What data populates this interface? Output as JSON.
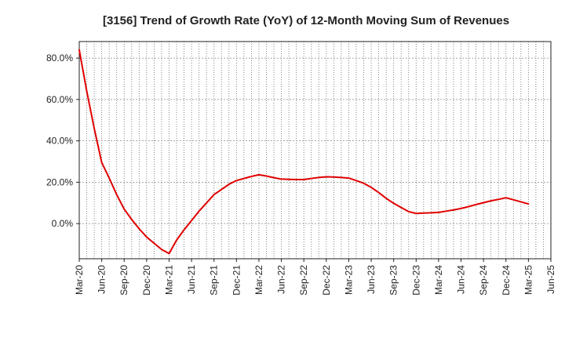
{
  "chart_data": {
    "type": "line",
    "title": "[3156]  Trend of Growth Rate (YoY) of 12-Month Moving Sum of Revenues",
    "xlabel": "",
    "ylabel": "",
    "x_tick_labels": [
      "Mar-20",
      "Jun-20",
      "Sep-20",
      "Dec-20",
      "Mar-21",
      "Jun-21",
      "Sep-21",
      "Dec-21",
      "Mar-22",
      "Jun-22",
      "Sep-22",
      "Dec-22",
      "Mar-23",
      "Jun-23",
      "Sep-23",
      "Dec-23",
      "Mar-24",
      "Jun-24",
      "Sep-24",
      "Dec-24",
      "Mar-25",
      "Jun-25"
    ],
    "y_tick_labels": [
      "80.0%",
      "60.0%",
      "40.0%",
      "20.0%",
      "0.0%"
    ],
    "y_ticks": [
      80,
      60,
      40,
      20,
      0
    ],
    "ylim": [
      -17,
      88
    ],
    "grid": true,
    "series": [
      {
        "color": "#e00000",
        "x": [
          "Mar-20",
          "Apr-20",
          "May-20",
          "Jun-20",
          "Jul-20",
          "Aug-20",
          "Sep-20",
          "Oct-20",
          "Nov-20",
          "Dec-20",
          "Jan-21",
          "Feb-21",
          "Mar-21",
          "Apr-21",
          "May-21",
          "Jun-21",
          "Jul-21",
          "Aug-21",
          "Sep-21",
          "Oct-21",
          "Nov-21",
          "Dec-21",
          "Jan-22",
          "Feb-22",
          "Mar-22",
          "Apr-22",
          "May-22",
          "Jun-22",
          "Jul-22",
          "Aug-22",
          "Sep-22",
          "Oct-22",
          "Nov-22",
          "Dec-22",
          "Jan-23",
          "Feb-23",
          "Mar-23",
          "Apr-23",
          "May-23",
          "Jun-23",
          "Jul-23",
          "Aug-23",
          "Sep-23",
          "Oct-23",
          "Nov-23",
          "Dec-23",
          "Jan-24",
          "Feb-24",
          "Mar-24",
          "Apr-24",
          "May-24",
          "Jun-24",
          "Jul-24",
          "Aug-24",
          "Sep-24",
          "Oct-24",
          "Nov-24",
          "Dec-24",
          "Jan-25",
          "Feb-25",
          "Mar-25"
        ],
        "values": [
          84.0,
          64.0,
          46.0,
          29.5,
          22.0,
          14.0,
          7.0,
          2.0,
          -2.5,
          -6.5,
          -9.5,
          -12.5,
          -14.5,
          -8.0,
          -3.0,
          1.5,
          6.0,
          10.0,
          14.0,
          16.5,
          19.0,
          20.8,
          21.8,
          22.8,
          23.6,
          23.0,
          22.2,
          21.5,
          21.4,
          21.3,
          21.3,
          21.8,
          22.3,
          22.6,
          22.5,
          22.3,
          22.0,
          20.8,
          19.5,
          17.5,
          15.0,
          12.2,
          9.8,
          7.8,
          5.8,
          4.9,
          5.1,
          5.2,
          5.4,
          6.0,
          6.6,
          7.3,
          8.2,
          9.2,
          10.1,
          11.0,
          11.7,
          12.5,
          11.5,
          10.5,
          9.5
        ]
      }
    ]
  }
}
